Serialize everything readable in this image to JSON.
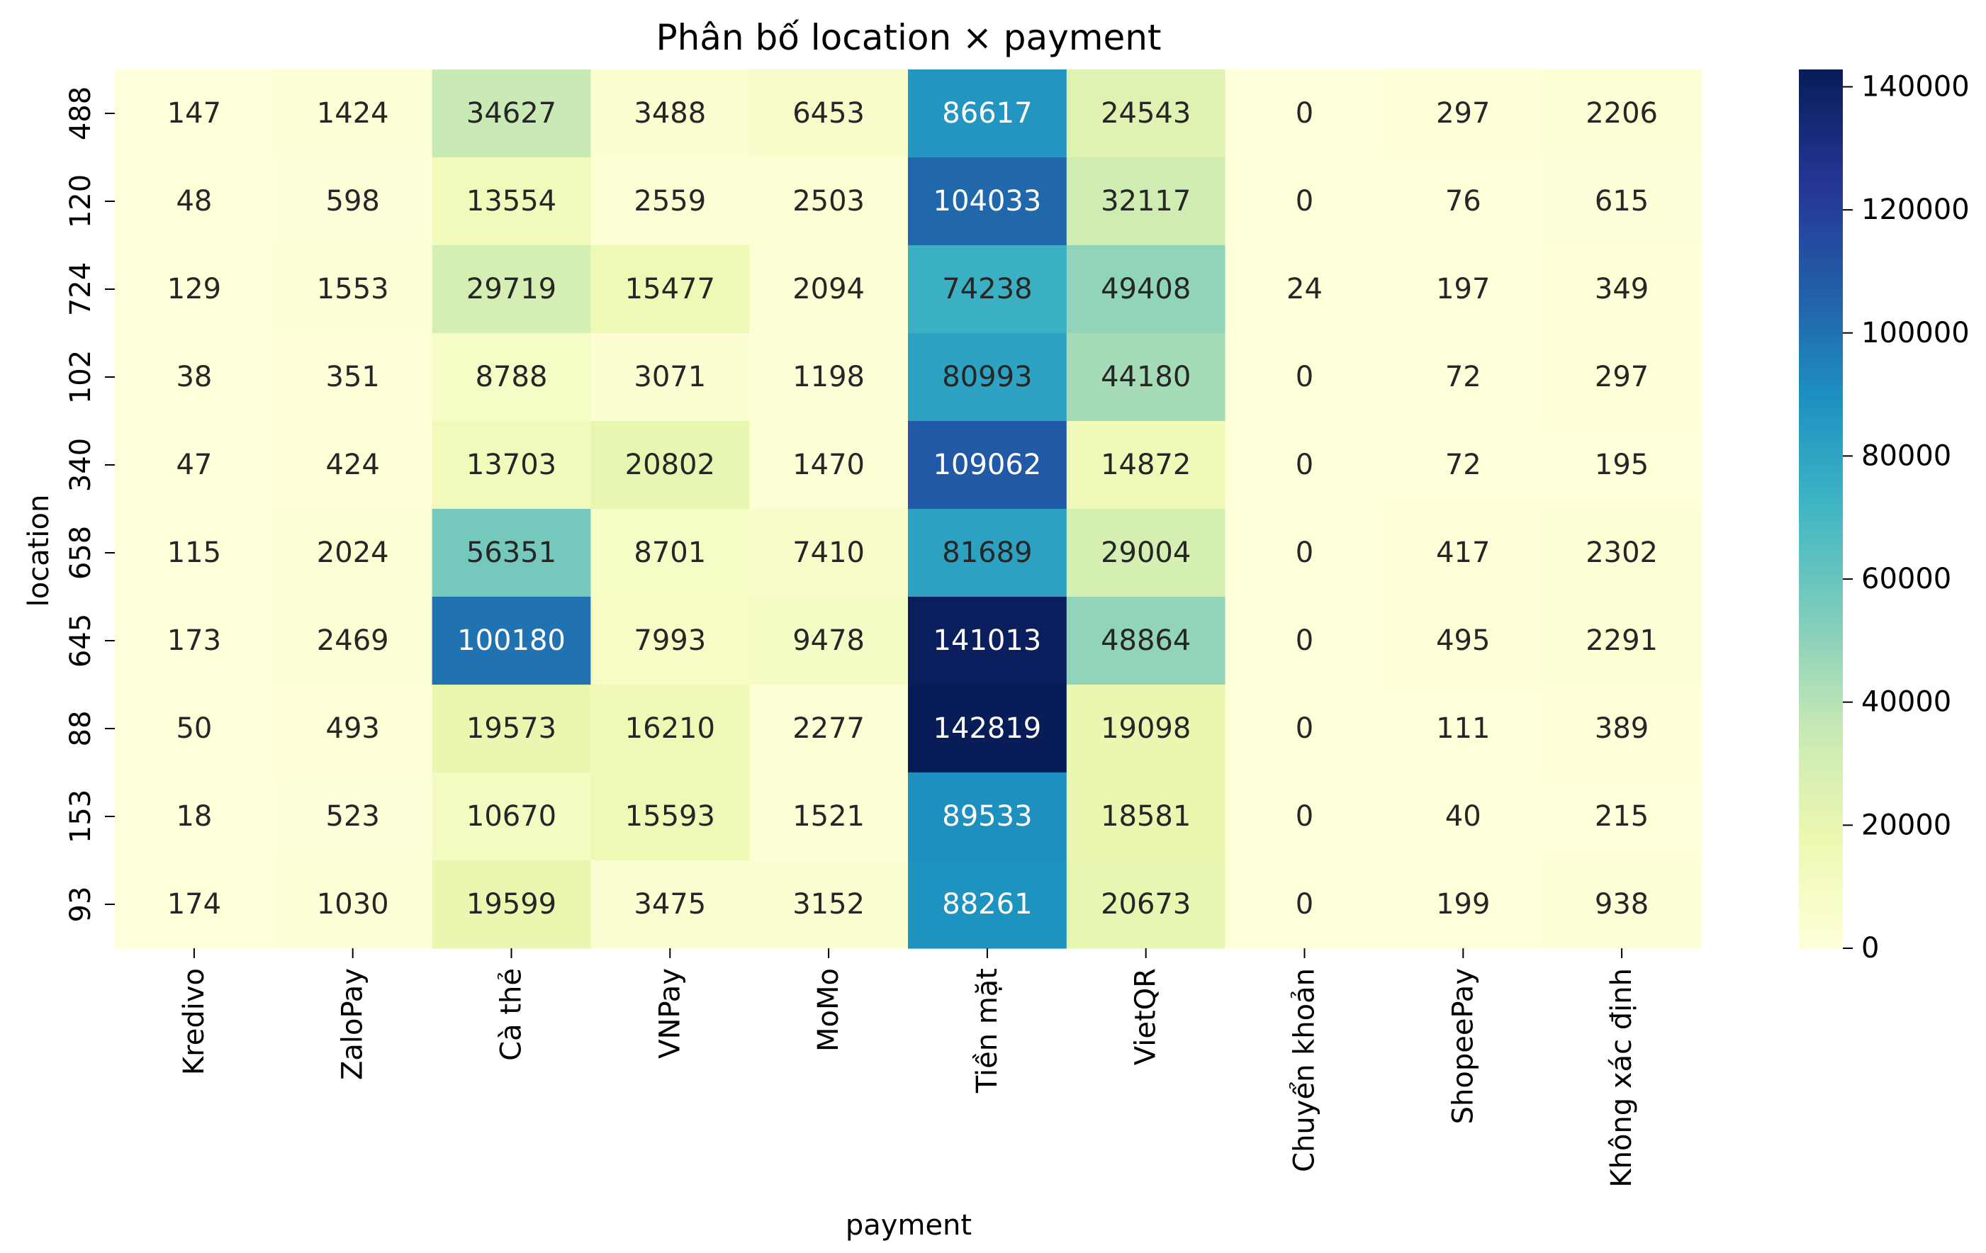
{
  "chart_data": {
    "type": "heatmap",
    "title": "Phân bố location × payment",
    "xlabel": "payment",
    "ylabel": "location",
    "x_categories": [
      "Kredivo",
      "ZaloPay",
      "Cà thẻ",
      "VNPay",
      "MoMo",
      "Tiền mặt",
      "VietQR",
      "Chuyển khoản",
      "ShopeePay",
      "Không xác định"
    ],
    "y_categories": [
      "488",
      "120",
      "724",
      "102",
      "340",
      "658",
      "645",
      "88",
      "153",
      "93"
    ],
    "values": [
      [
        147,
        1424,
        34627,
        3488,
        6453,
        86617,
        24543,
        0,
        297,
        2206
      ],
      [
        48,
        598,
        13554,
        2559,
        2503,
        104033,
        32117,
        0,
        76,
        615
      ],
      [
        129,
        1553,
        29719,
        15477,
        2094,
        74238,
        49408,
        24,
        197,
        349
      ],
      [
        38,
        351,
        8788,
        3071,
        1198,
        80993,
        44180,
        0,
        72,
        297
      ],
      [
        47,
        424,
        13703,
        20802,
        1470,
        109062,
        14872,
        0,
        72,
        195
      ],
      [
        115,
        2024,
        56351,
        8701,
        7410,
        81689,
        29004,
        0,
        417,
        2302
      ],
      [
        173,
        2469,
        100180,
        7993,
        9478,
        141013,
        48864,
        0,
        495,
        2291
      ],
      [
        50,
        493,
        19573,
        16210,
        2277,
        142819,
        19098,
        0,
        111,
        389
      ],
      [
        18,
        523,
        10670,
        15593,
        1521,
        89533,
        18581,
        0,
        40,
        215
      ],
      [
        174,
        1030,
        19599,
        3475,
        3152,
        88261,
        20673,
        0,
        199,
        938
      ]
    ],
    "colormap": "YlGnBu",
    "value_range": [
      0,
      142819
    ],
    "colorbar_ticks": [
      0,
      20000,
      40000,
      60000,
      80000,
      100000,
      120000,
      140000
    ],
    "annotations": true,
    "colors": {
      "dark_text": "#262626",
      "light_text": "#ffffff",
      "axis": "#000000"
    }
  }
}
